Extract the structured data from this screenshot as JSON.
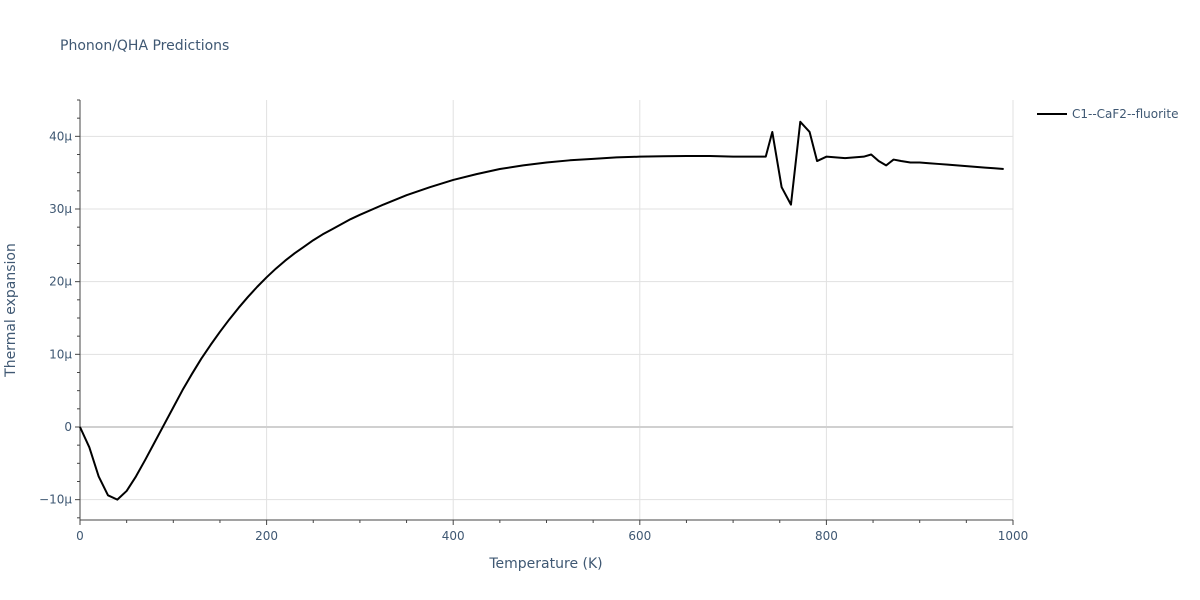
{
  "chart_data": {
    "type": "line",
    "title": "Phonon/QHA Predictions",
    "xlabel": "Temperature (K)",
    "ylabel": "Thermal expansion",
    "xlim": [
      0,
      1000
    ],
    "ylim": [
      -12.8,
      45
    ],
    "x_ticks": [
      0,
      200,
      400,
      600,
      800,
      1000
    ],
    "x_tick_labels": [
      "0",
      "200",
      "400",
      "600",
      "800",
      "1000"
    ],
    "y_ticks": [
      -10,
      0,
      10,
      20,
      30,
      40
    ],
    "y_tick_labels": [
      "−10μ",
      "0",
      "10μ",
      "20μ",
      "30μ",
      "40μ"
    ],
    "grid": true,
    "legend_position": "top-right",
    "series": [
      {
        "name": "C1--CaF2--fluorite",
        "color": "#000000",
        "x": [
          0,
          10,
          20,
          30,
          40,
          50,
          60,
          70,
          80,
          90,
          100,
          110,
          120,
          130,
          140,
          150,
          160,
          170,
          180,
          190,
          200,
          210,
          220,
          230,
          240,
          250,
          260,
          270,
          280,
          290,
          300,
          325,
          350,
          375,
          400,
          425,
          450,
          475,
          500,
          525,
          550,
          575,
          600,
          625,
          650,
          675,
          700,
          710,
          720,
          730,
          735,
          742,
          752,
          762,
          772,
          782,
          790,
          800,
          810,
          820,
          830,
          840,
          848,
          856,
          864,
          872,
          880,
          890,
          900,
          910,
          920,
          930,
          940,
          950,
          960,
          970,
          980,
          990
        ],
        "y": [
          0,
          -2.8,
          -6.8,
          -9.4,
          -10,
          -8.8,
          -6.8,
          -4.5,
          -2.1,
          0.3,
          2.7,
          5.1,
          7.3,
          9.4,
          11.3,
          13.1,
          14.8,
          16.4,
          17.9,
          19.3,
          20.6,
          21.8,
          22.9,
          23.9,
          24.8,
          25.7,
          26.5,
          27.2,
          27.9,
          28.6,
          29.2,
          30.6,
          31.9,
          33.0,
          34.0,
          34.8,
          35.5,
          36.0,
          36.4,
          36.7,
          36.9,
          37.1,
          37.2,
          37.25,
          37.3,
          37.3,
          37.2,
          37.2,
          37.2,
          37.2,
          37.2,
          40.6,
          33.0,
          30.6,
          42.0,
          40.6,
          36.6,
          37.2,
          37.1,
          37.0,
          37.1,
          37.2,
          37.5,
          36.6,
          36.0,
          36.8,
          36.6,
          36.4,
          36.4,
          36.3,
          36.2,
          36.1,
          36.0,
          35.9,
          35.8,
          35.7,
          35.6,
          35.5
        ]
      }
    ]
  }
}
